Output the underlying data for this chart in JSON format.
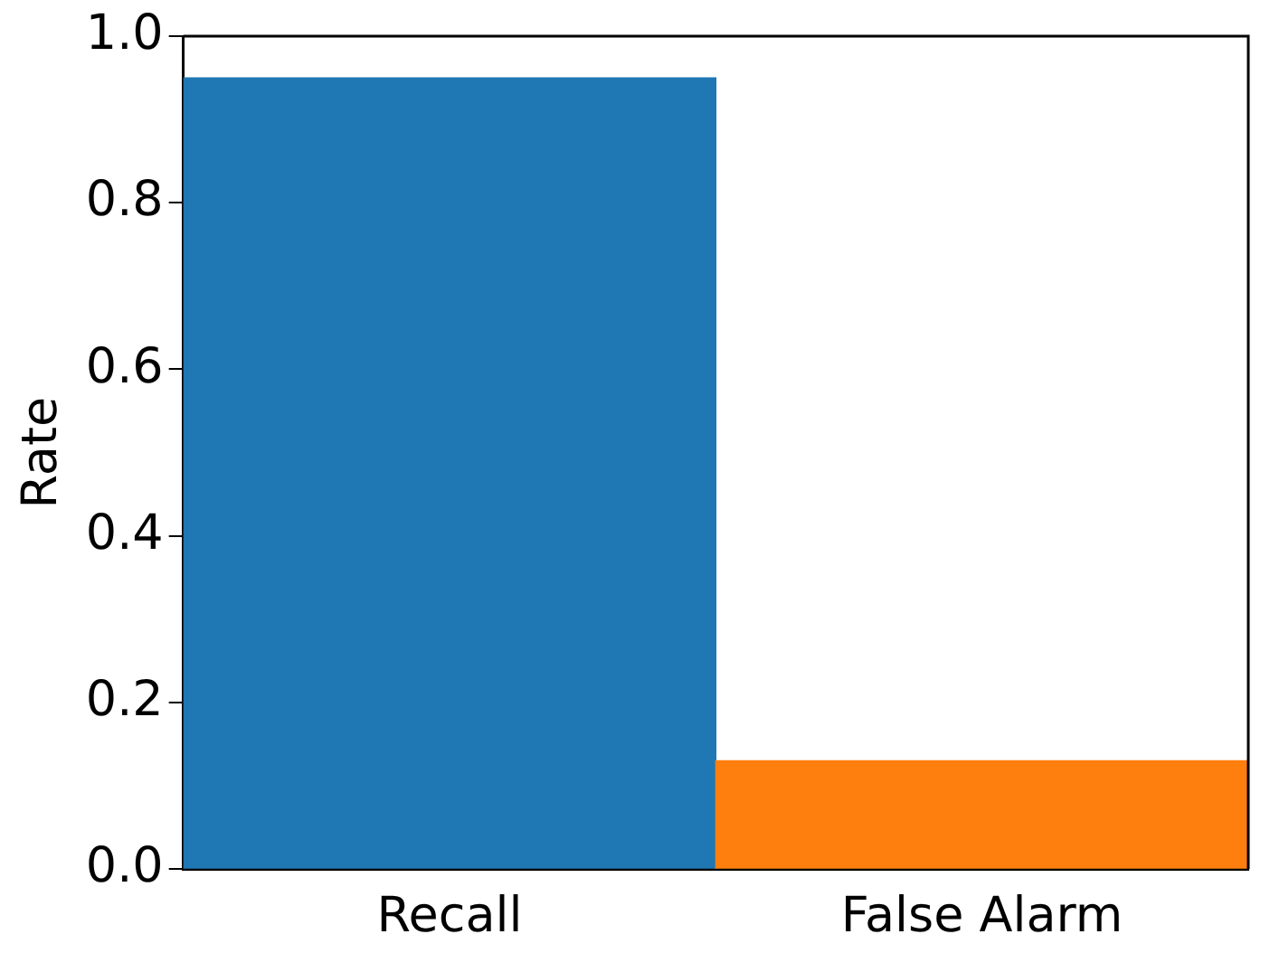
{
  "chart_data": {
    "type": "bar",
    "ylabel": "Rate",
    "categories": [
      "Recall",
      "False Alarm"
    ],
    "values": [
      0.95,
      0.13
    ],
    "colors": [
      "#1f77b4",
      "#ff7f0e"
    ],
    "ylim": [
      0,
      1
    ],
    "yticks": [
      {
        "value": 0,
        "label": "0.0"
      },
      0.2,
      0.4,
      0.6,
      0.8,
      {
        "value": 1,
        "label": "1.0"
      }
    ],
    "grid": false,
    "legend": false
  }
}
